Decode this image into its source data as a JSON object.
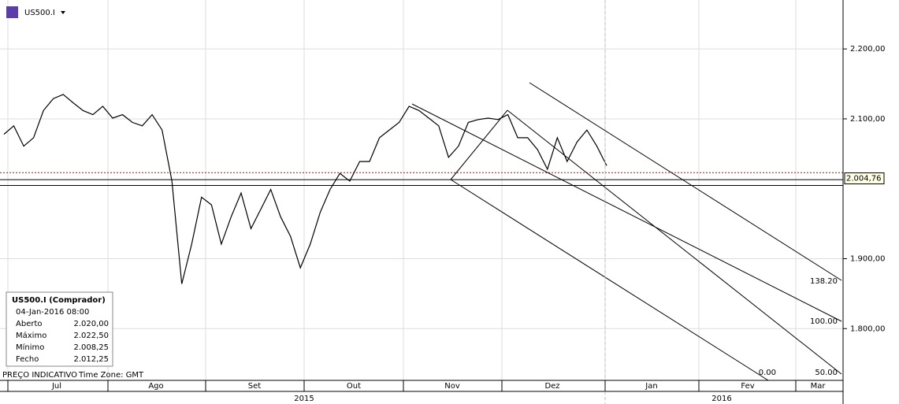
{
  "chart_data": {
    "type": "line",
    "symbol": "US500.I",
    "series": [
      {
        "name": "US500.I",
        "color": "#000000",
        "values": [
          2078,
          2090,
          2061,
          2073,
          2112,
          2129,
          2135,
          2123,
          2112,
          2106,
          2118,
          2101,
          2106,
          2095,
          2090,
          2106,
          2084,
          2011,
          1864,
          1921,
          1988,
          1977,
          1921,
          1960,
          1994,
          1943,
          1971,
          1999,
          1960,
          1932,
          1887,
          1921,
          1966,
          1999,
          2022,
          2011,
          2039,
          2039,
          2073,
          2084,
          2095,
          2118,
          2112,
          2101,
          2090,
          2045,
          2061,
          2095,
          2099,
          2101,
          2099,
          2106,
          2073,
          2073,
          2056,
          2028,
          2073,
          2039,
          2067,
          2084,
          2061,
          2033
        ]
      }
    ],
    "ylim": [
      1726,
      2270
    ],
    "yticks": [
      {
        "value": 1800,
        "label": "1.800,00"
      },
      {
        "value": 1900,
        "label": "1.900,00"
      },
      {
        "value": 2100,
        "label": "2.100,00"
      },
      {
        "value": 2200,
        "label": "2.200,00"
      }
    ],
    "grid": true,
    "months": [
      "Jul",
      "Ago",
      "Set",
      "Out",
      "Nov",
      "Dez",
      "Jan",
      "Fev",
      "Mar"
    ],
    "years": [
      "2015",
      "2016"
    ],
    "current_price": {
      "value": 2004.76,
      "label": "2.004,76"
    },
    "levels": [
      {
        "value": 2023,
        "color": "#cc0000"
      },
      {
        "value": 2013,
        "color": "#000000"
      }
    ],
    "fib_labels": [
      "138.20",
      "100.00",
      "50.00",
      "0.00"
    ],
    "footer": [
      "PREÇO INDICATIVO",
      "Time Zone: GMT"
    ],
    "info": {
      "title": "US500.I (Comprador)",
      "date": "04-Jan-2016 08:00",
      "rows": [
        [
          "Aberto",
          "2.020,00"
        ],
        [
          "Máximo",
          "2.022,50"
        ],
        [
          "Mínimo",
          "2.008,25"
        ],
        [
          "Fecho",
          "2.012,25"
        ]
      ]
    }
  }
}
